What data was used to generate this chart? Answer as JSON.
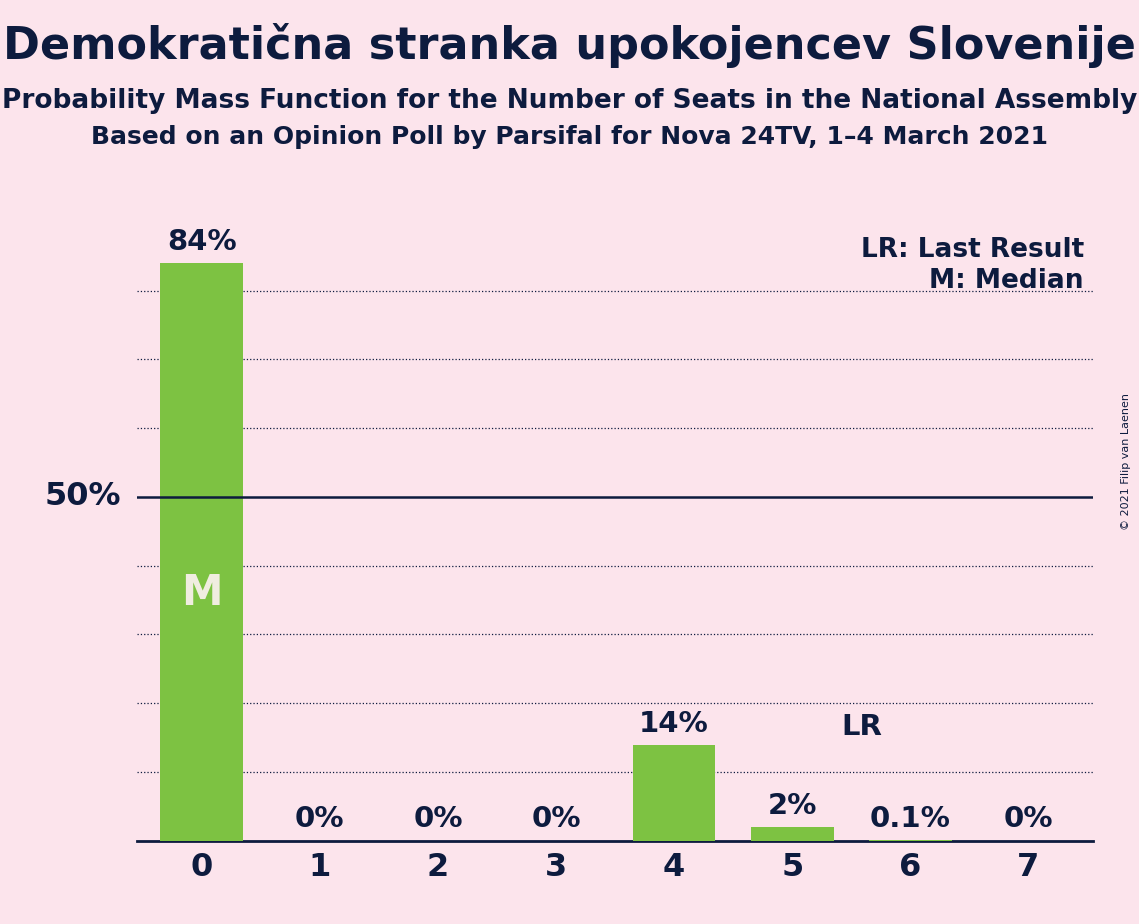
{
  "title": "Demokratična stranka upokojencev Slovenije",
  "subtitle": "Probability Mass Function for the Number of Seats in the National Assembly",
  "subsubtitle": "Based on an Opinion Poll by Parsifal for Nova 24TV, 1–4 March 2021",
  "copyright": "© 2021 Filip van Laenen",
  "categories": [
    0,
    1,
    2,
    3,
    4,
    5,
    6,
    7
  ],
  "values": [
    84,
    0,
    0,
    0,
    14,
    2,
    0.1,
    0
  ],
  "labels": [
    "84%",
    "0%",
    "0%",
    "0%",
    "14%",
    "2%",
    "0.1%",
    "0%"
  ],
  "bar_color": "#7dc242",
  "background_color": "#fce4ec",
  "median_bar": 0,
  "median_label": "M",
  "median_label_color": "#f0ede0",
  "lr_bar": 5,
  "lr_label": "LR",
  "ylim": [
    0,
    90
  ],
  "dotted_lines": [
    10,
    20,
    30,
    40,
    60,
    70,
    80
  ],
  "solid_line": 50,
  "title_fontsize": 32,
  "subtitle_fontsize": 19,
  "subsubtitle_fontsize": 18,
  "bar_label_fontsize": 21,
  "axis_tick_fontsize": 23,
  "legend_fontsize": 19,
  "ylabel_fontsize": 23,
  "text_color": "#0d1b3e"
}
